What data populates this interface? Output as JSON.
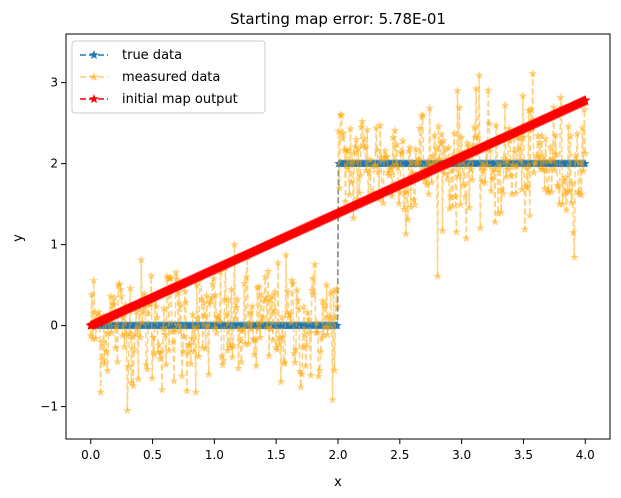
{
  "chart_data": {
    "type": "line",
    "title": "Starting map error: 5.78E-01",
    "xlabel": "x",
    "ylabel": "y",
    "xlim": [
      -0.2,
      4.2
    ],
    "ylim": [
      -1.4,
      3.6
    ],
    "x_ticks": [
      0.0,
      0.5,
      1.0,
      1.5,
      2.0,
      2.5,
      3.0,
      3.5,
      4.0
    ],
    "x_tick_labels": [
      "0.0",
      "0.5",
      "1.0",
      "1.5",
      "2.0",
      "2.5",
      "3.0",
      "3.5",
      "4.0"
    ],
    "y_ticks": [
      -1,
      0,
      1,
      2,
      3
    ],
    "y_tick_labels": [
      "−1",
      "0",
      "1",
      "2",
      "3"
    ],
    "grid": false,
    "legend_position": "upper-left",
    "series": [
      {
        "name": "true data",
        "color": "#1f77b4",
        "linestyle": "dashed",
        "marker": "star",
        "x_range": [
          0,
          4
        ],
        "num_points": 500,
        "function": "step",
        "step_x": 2.0,
        "y_low": 0,
        "y_high": 2
      },
      {
        "name": "measured data",
        "color": "#ffa500",
        "linestyle": "dashed",
        "marker": "star",
        "x_range": [
          0,
          4
        ],
        "num_points": 500,
        "noise_std": 0.4,
        "observed_min": -1.15,
        "observed_max": 3.45
      },
      {
        "name": "initial map output",
        "color": "#ff0000",
        "linestyle": "dashed",
        "marker": "star",
        "x_range": [
          0,
          4
        ],
        "num_points": 500,
        "function": "linear",
        "y_start": 0.0,
        "y_end": 2.78
      }
    ]
  }
}
